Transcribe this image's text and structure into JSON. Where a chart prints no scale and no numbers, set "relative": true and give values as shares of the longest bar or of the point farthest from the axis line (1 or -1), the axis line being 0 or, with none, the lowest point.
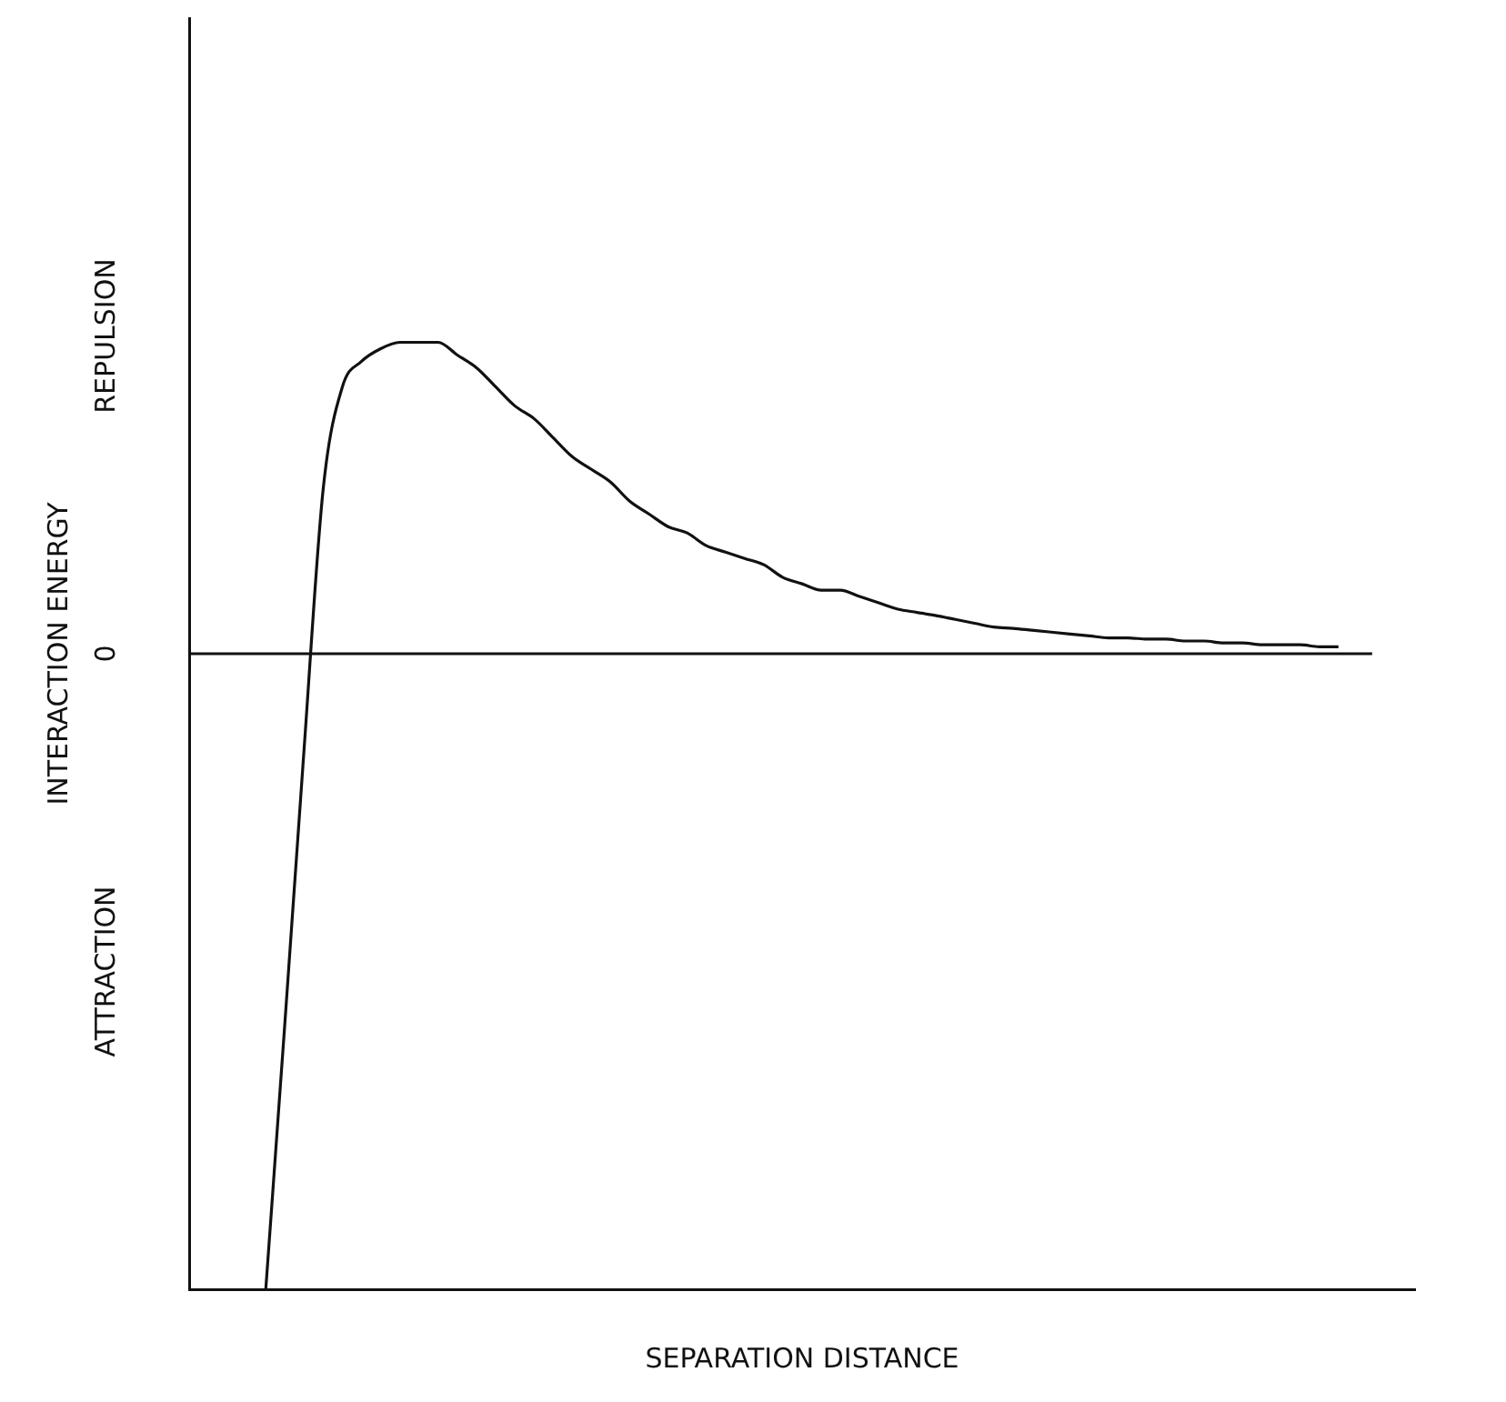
{
  "chart_data": {
    "type": "line",
    "relative": true,
    "xlabel": "SEPARATION DISTANCE",
    "ylabel": "INTERACTION ENERGY",
    "categories": [
      null,
      null,
      null,
      null,
      null,
      null,
      null,
      null,
      null,
      null,
      null,
      null,
      null,
      null,
      null,
      null,
      null,
      null,
      null,
      null,
      null,
      null,
      null,
      null,
      null,
      null,
      null,
      null,
      null,
      null,
      null,
      null,
      null,
      null,
      null,
      null,
      null,
      null,
      null,
      null,
      null,
      null,
      null,
      null,
      null,
      null,
      null,
      null,
      null,
      null,
      null,
      null,
      null,
      null,
      null,
      null,
      null,
      null,
      null,
      null,
      null,
      null,
      null,
      null,
      null
    ],
    "series": [
      {
        "color": "#111111",
        "values": [
          null,
          null,
          null,
          null,
          -1,
          -0.58,
          -0.15,
          0.26,
          0.42,
          0.46,
          0.48,
          0.49,
          0.49,
          0.49,
          0.47,
          0.45,
          0.42,
          0.39,
          0.37,
          0.34,
          0.31,
          0.29,
          0.27,
          0.24,
          0.22,
          0.2,
          0.19,
          0.17,
          0.16,
          0.15,
          0.14,
          0.12,
          0.11,
          0.1,
          0.1,
          0.09,
          0.08,
          0.07,
          0.065,
          0.06,
          0.054,
          0.048,
          0.042,
          0.04,
          0.037,
          0.034,
          0.031,
          0.028,
          0.025,
          0.025,
          0.023,
          0.023,
          0.02,
          0.02,
          0.017,
          0.017,
          0.014,
          0.014,
          0.014,
          0.011,
          0.011,
          null,
          null,
          null,
          null
        ]
      }
    ],
    "ref_lines": [
      {
        "axis": "y",
        "value": 0,
        "label": "0",
        "color": "#111111"
      }
    ],
    "annotations": [
      "REPULSION",
      "ATTRACTION"
    ],
    "marker": "none",
    "line_style": "solid",
    "grid": false,
    "legend": false
  }
}
